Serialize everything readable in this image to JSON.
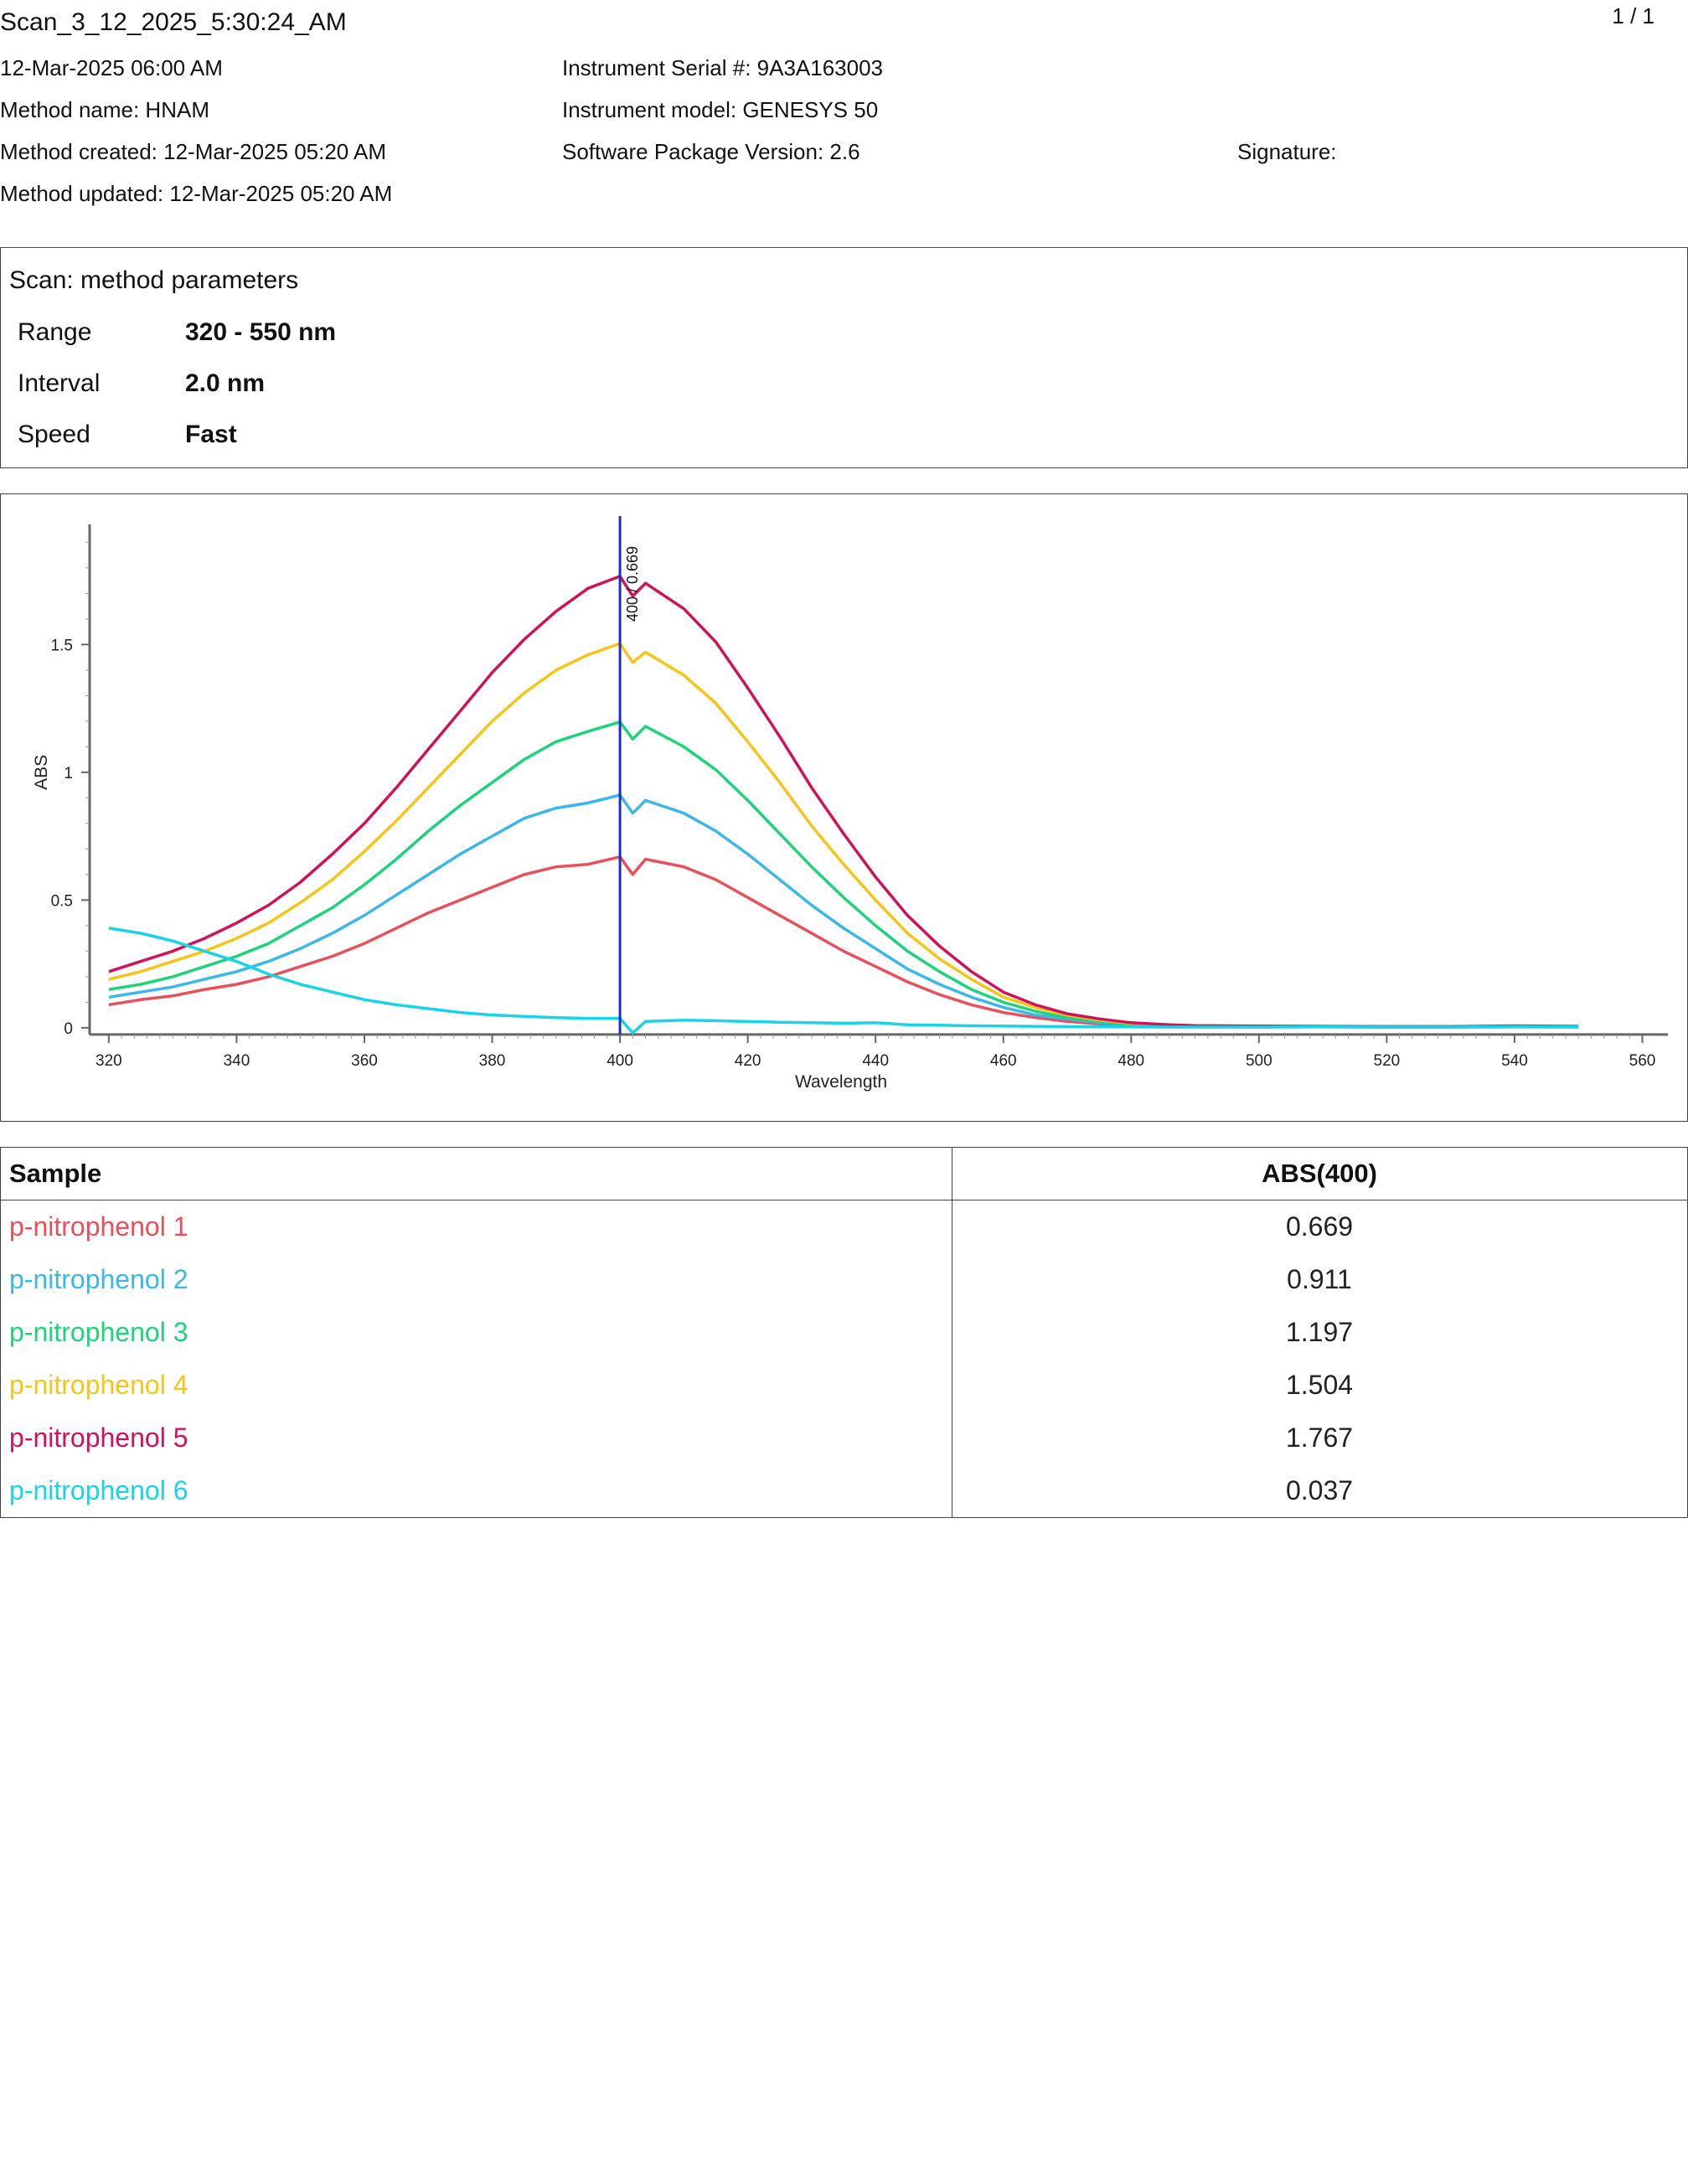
{
  "header": {
    "scan_name": "Scan_3_12_2025_5:30:24_AM",
    "page": "1 / 1",
    "datetime": "12-Mar-2025 06:00 AM",
    "method_name": "Method name: HNAM",
    "method_created": "Method created: 12-Mar-2025 05:20 AM",
    "method_updated": "Method updated: 12-Mar-2025 05:20 AM",
    "serial": "Instrument Serial #: 9A3A163003",
    "model": "Instrument model: GENESYS 50",
    "software": "Software Package Version: 2.6",
    "signature": "Signature:"
  },
  "params": {
    "title": "Scan: method parameters",
    "rows": [
      {
        "label": "Range",
        "value": "320 - 550 nm"
      },
      {
        "label": "Interval",
        "value": "2.0 nm"
      },
      {
        "label": "Speed",
        "value": "Fast"
      }
    ]
  },
  "chart_data": {
    "type": "line",
    "xlabel": "Wavelength",
    "ylabel": "ABS",
    "xlim": [
      317,
      564
    ],
    "ylim": [
      -0.02,
      1.97
    ],
    "xticks": [
      320,
      340,
      360,
      380,
      400,
      420,
      440,
      460,
      480,
      500,
      520,
      540,
      560
    ],
    "yticks": [
      0,
      0.5,
      1,
      1.5
    ],
    "ytick_labels": [
      "0",
      "0.5",
      "1",
      "1.5"
    ],
    "marker": {
      "x": 400,
      "label": "400 / 0.669",
      "color": "#1f2fb5"
    },
    "x": [
      320,
      325,
      330,
      335,
      340,
      345,
      350,
      355,
      360,
      365,
      370,
      375,
      380,
      385,
      390,
      395,
      400,
      402,
      404,
      410,
      415,
      420,
      425,
      430,
      435,
      440,
      445,
      450,
      455,
      460,
      465,
      470,
      475,
      480,
      485,
      490,
      500,
      510,
      520,
      530,
      540,
      550
    ],
    "series": [
      {
        "name": "p-nitrophenol 1",
        "color": "#e8505b",
        "values": [
          0.09,
          0.11,
          0.125,
          0.15,
          0.17,
          0.2,
          0.24,
          0.28,
          0.33,
          0.39,
          0.45,
          0.5,
          0.55,
          0.6,
          0.63,
          0.64,
          0.669,
          0.6,
          0.66,
          0.63,
          0.58,
          0.51,
          0.44,
          0.37,
          0.3,
          0.24,
          0.18,
          0.13,
          0.09,
          0.06,
          0.04,
          0.025,
          0.015,
          0.01,
          0.005,
          0.005,
          0.003,
          0.004,
          0.003,
          0.003,
          0.004,
          0.003
        ]
      },
      {
        "name": "p-nitrophenol 2",
        "color": "#3bb7e8",
        "values": [
          0.12,
          0.14,
          0.16,
          0.19,
          0.22,
          0.26,
          0.31,
          0.37,
          0.44,
          0.52,
          0.6,
          0.68,
          0.75,
          0.82,
          0.86,
          0.88,
          0.911,
          0.84,
          0.89,
          0.84,
          0.77,
          0.68,
          0.58,
          0.48,
          0.39,
          0.31,
          0.23,
          0.17,
          0.12,
          0.08,
          0.05,
          0.035,
          0.02,
          0.012,
          0.008,
          0.006,
          0.004,
          0.004,
          0.003,
          0.003,
          0.005,
          0.004
        ]
      },
      {
        "name": "p-nitrophenol 3",
        "color": "#1ed47a",
        "values": [
          0.15,
          0.17,
          0.2,
          0.24,
          0.28,
          0.33,
          0.4,
          0.47,
          0.56,
          0.66,
          0.77,
          0.87,
          0.96,
          1.05,
          1.12,
          1.16,
          1.197,
          1.13,
          1.18,
          1.1,
          1.01,
          0.89,
          0.76,
          0.63,
          0.51,
          0.4,
          0.3,
          0.22,
          0.15,
          0.1,
          0.065,
          0.04,
          0.025,
          0.015,
          0.01,
          0.007,
          0.005,
          0.005,
          0.004,
          0.004,
          0.006,
          0.005
        ]
      },
      {
        "name": "p-nitrophenol 4",
        "color": "#f5c518",
        "values": [
          0.19,
          0.22,
          0.26,
          0.3,
          0.35,
          0.41,
          0.49,
          0.58,
          0.69,
          0.81,
          0.94,
          1.07,
          1.2,
          1.31,
          1.4,
          1.46,
          1.504,
          1.43,
          1.47,
          1.38,
          1.27,
          1.12,
          0.96,
          0.79,
          0.64,
          0.5,
          0.37,
          0.27,
          0.19,
          0.12,
          0.08,
          0.05,
          0.03,
          0.018,
          0.012,
          0.008,
          0.006,
          0.006,
          0.005,
          0.004,
          0.007,
          0.006
        ]
      },
      {
        "name": "p-nitrophenol 5",
        "color": "#cf1259",
        "values": [
          0.22,
          0.26,
          0.3,
          0.35,
          0.41,
          0.48,
          0.57,
          0.68,
          0.8,
          0.94,
          1.09,
          1.24,
          1.39,
          1.52,
          1.63,
          1.72,
          1.767,
          1.69,
          1.74,
          1.64,
          1.51,
          1.33,
          1.14,
          0.94,
          0.76,
          0.59,
          0.44,
          0.32,
          0.22,
          0.14,
          0.09,
          0.055,
          0.035,
          0.02,
          0.013,
          0.009,
          0.007,
          0.006,
          0.005,
          0.005,
          0.008,
          0.006
        ]
      },
      {
        "name": "p-nitrophenol 6",
        "color": "#19d4e6",
        "values": [
          0.39,
          0.37,
          0.34,
          0.3,
          0.26,
          0.21,
          0.17,
          0.14,
          0.11,
          0.09,
          0.075,
          0.06,
          0.05,
          0.045,
          0.04,
          0.037,
          0.037,
          -0.02,
          0.025,
          0.03,
          0.028,
          0.025,
          0.022,
          0.02,
          0.018,
          0.02,
          0.012,
          0.01,
          0.008,
          0.007,
          0.006,
          0.005,
          0.004,
          0.004,
          0.003,
          0.003,
          0.003,
          0.004,
          0.003,
          0.003,
          0.005,
          0.004
        ]
      }
    ]
  },
  "table": {
    "headers": [
      "Sample",
      "ABS(400)"
    ],
    "rows": [
      {
        "sample": "p-nitrophenol 1",
        "value": "0.669",
        "color": "#e8505b"
      },
      {
        "sample": "p-nitrophenol 2",
        "value": "0.911",
        "color": "#3bb7e8"
      },
      {
        "sample": "p-nitrophenol 3",
        "value": "1.197",
        "color": "#1ed47a"
      },
      {
        "sample": "p-nitrophenol 4",
        "value": "1.504",
        "color": "#f5c518"
      },
      {
        "sample": "p-nitrophenol 5",
        "value": "1.767",
        "color": "#cf1259"
      },
      {
        "sample": "p-nitrophenol 6",
        "value": "0.037",
        "color": "#19d4e6"
      }
    ]
  }
}
